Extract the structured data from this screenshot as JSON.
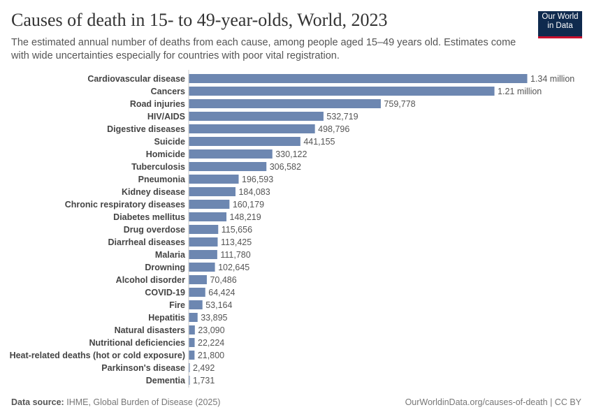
{
  "header": {
    "title": "Causes of death in 15- to 49-year-olds, World, 2023",
    "subtitle": "The estimated annual number of deaths from each cause, among people aged 15–49 years old. Estimates come with wide uncertainties especially for countries with poor vital registration.",
    "logo": "Our World in Data"
  },
  "footer": {
    "source_label": "Data source:",
    "source": "IHME, Global Burden of Disease (2025)",
    "url": "OurWorldinData.org/causes-of-death | CC BY"
  },
  "colors": {
    "bar": "#6d87b1",
    "logo_bg": "#0f2a4e",
    "logo_accent": "#c8102e"
  },
  "chart_data": {
    "type": "bar",
    "orientation": "horizontal",
    "title": "Causes of death in 15- to 49-year-olds, World, 2023",
    "categories": [
      "Cardiovascular disease",
      "Cancers",
      "Road injuries",
      "HIV/AIDS",
      "Digestive diseases",
      "Suicide",
      "Homicide",
      "Tuberculosis",
      "Pneumonia",
      "Kidney disease",
      "Chronic respiratory diseases",
      "Diabetes mellitus",
      "Drug overdose",
      "Diarrheal diseases",
      "Malaria",
      "Drowning",
      "Alcohol disorder",
      "COVID-19",
      "Fire",
      "Hepatitis",
      "Natural disasters",
      "Nutritional deficiencies",
      "Heat-related deaths (hot or cold exposure)",
      "Parkinson's disease",
      "Dementia"
    ],
    "values": [
      1340000,
      1210000,
      759778,
      532719,
      498796,
      441155,
      330122,
      306582,
      196593,
      184083,
      160179,
      148219,
      115656,
      113425,
      111780,
      102645,
      70486,
      64424,
      53164,
      33895,
      23090,
      22224,
      21800,
      2492,
      1731
    ],
    "value_labels": [
      "1.34 million",
      "1.21 million",
      "759,778",
      "532,719",
      "498,796",
      "441,155",
      "330,122",
      "306,582",
      "196,593",
      "184,083",
      "160,179",
      "148,219",
      "115,656",
      "113,425",
      "111,780",
      "102,645",
      "70,486",
      "64,424",
      "53,164",
      "33,895",
      "23,090",
      "22,224",
      "21,800",
      "2,492",
      "1,731"
    ],
    "grid": false,
    "legend": "none"
  }
}
